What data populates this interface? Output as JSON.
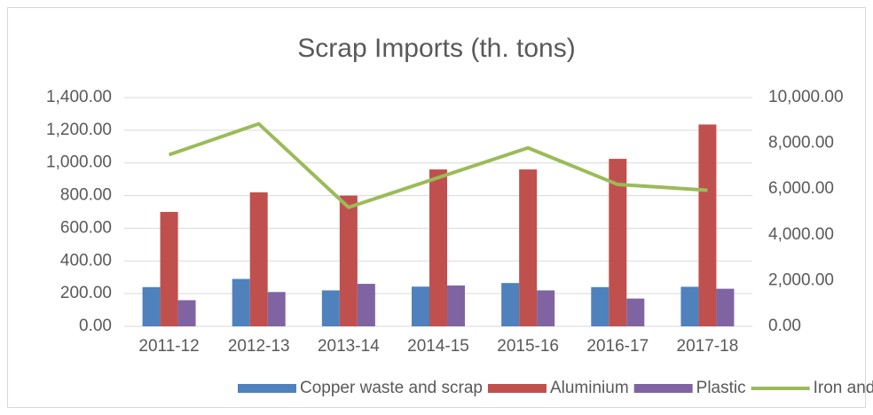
{
  "chart_data": {
    "type": "bar",
    "title": "Scrap Imports (th. tons)",
    "categories": [
      "2011-12",
      "2012-13",
      "2013-14",
      "2014-15",
      "2015-16",
      "2016-17",
      "2017-18"
    ],
    "series": [
      {
        "name": "Copper waste and scrap",
        "color": "#4f81bd",
        "values": [
          240,
          290,
          220,
          243,
          265,
          240,
          242
        ]
      },
      {
        "name": "Aluminium",
        "color": "#c0504d",
        "values": [
          700,
          820,
          800,
          960,
          960,
          1025,
          1235
        ]
      },
      {
        "name": "Plastic",
        "color": "#8064a2",
        "values": [
          160,
          210,
          260,
          250,
          220,
          170,
          230
        ]
      },
      {
        "name": "Iron and Steel",
        "color": "#9bbb59",
        "type": "line",
        "axis": "y2",
        "values": [
          7500,
          8850,
          5200,
          6500,
          7800,
          6200,
          5950
        ]
      }
    ],
    "ylim": [
      0,
      1400
    ],
    "yticks": [
      {
        "value": 0,
        "label": "0.00"
      },
      {
        "value": 200,
        "label": "200.00"
      },
      {
        "value": 400,
        "label": "400.00"
      },
      {
        "value": 600,
        "label": "600.00"
      },
      {
        "value": 800,
        "label": "800.00"
      },
      {
        "value": 1000,
        "label": "1,000.00"
      },
      {
        "value": 1200,
        "label": "1,200.00"
      },
      {
        "value": 1400,
        "label": "1,400.00"
      }
    ],
    "y2lim": [
      0,
      10000
    ],
    "y2ticks": [
      {
        "value": 0,
        "label": "0.00"
      },
      {
        "value": 2000,
        "label": "2,000.00"
      },
      {
        "value": 4000,
        "label": "4,000.00"
      },
      {
        "value": 6000,
        "label": "6,000.00"
      },
      {
        "value": 8000,
        "label": "8,000.00"
      },
      {
        "value": 10000,
        "label": "10,000.00"
      }
    ],
    "grid": true,
    "legend": "bottom"
  }
}
